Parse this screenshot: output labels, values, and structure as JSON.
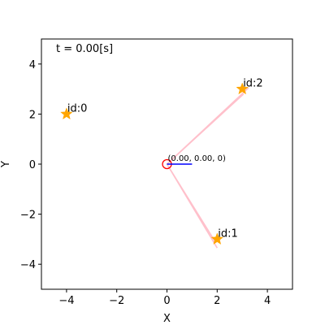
{
  "chart_data": {
    "type": "scatter",
    "title": "",
    "xlabel": "X",
    "ylabel": "Y",
    "xlim": [
      -5,
      5
    ],
    "ylim": [
      -5,
      5
    ],
    "xticks": [
      -4,
      -2,
      0,
      2,
      4
    ],
    "yticks": [
      -4,
      -2,
      0,
      2,
      4
    ],
    "xtick_labels": [
      "−4",
      "−2",
      "0",
      "2",
      "4"
    ],
    "ytick_labels": [
      "−4",
      "−2",
      "0",
      "2",
      "4"
    ],
    "grid": false,
    "time_label": "t = 0.00[s]",
    "landmarks": [
      {
        "label": "id:0",
        "x": -4,
        "y": 2
      },
      {
        "label": "id:1",
        "x": 2,
        "y": -3
      },
      {
        "label": "id:2",
        "x": 3,
        "y": 3
      }
    ],
    "robot": {
      "x": 0,
      "y": 0,
      "theta": 0,
      "label": "(0.00, 0.00, 0)",
      "heading_length": 1.0
    },
    "observation_rays": [
      {
        "from": [
          0,
          0
        ],
        "to": [
          2.0,
          -3.35
        ]
      },
      {
        "from": [
          0,
          0
        ],
        "to": [
          1.92,
          -3.1
        ]
      },
      {
        "from": [
          0,
          0
        ],
        "to": [
          3.25,
          3.05
        ]
      },
      {
        "from": [
          0,
          0
        ],
        "to": [
          3.05,
          2.8
        ]
      }
    ],
    "colors": {
      "landmark": "#FFA500",
      "robot": "#ff0000",
      "heading": "#0000ff",
      "ray": "#ffc0cb"
    }
  }
}
